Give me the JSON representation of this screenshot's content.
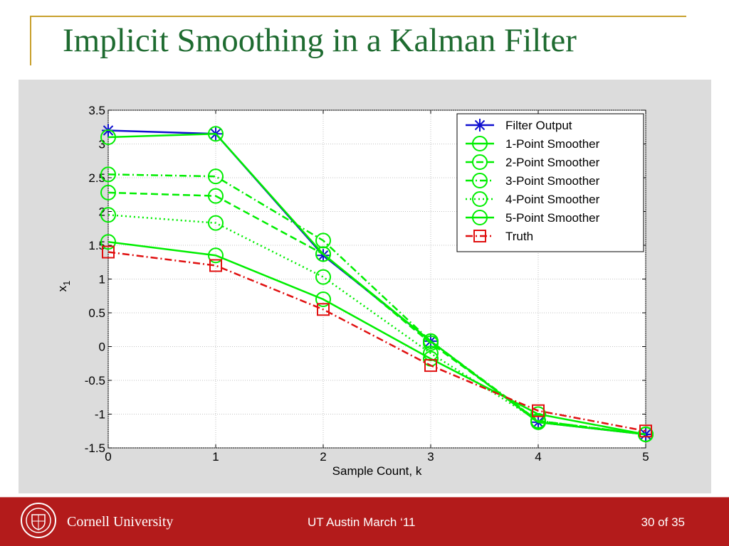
{
  "slide": {
    "title": "Implicit Smoothing in a Kalman Filter"
  },
  "footer": {
    "university": "Cornell University",
    "talk": "UT Austin March ‘11",
    "page": "30 of 35"
  },
  "colors": {
    "title": "#1e6b30",
    "accent_rule": "#c8a02c",
    "footer_bg": "#b31b1b",
    "filter_output": "#1010d0",
    "smoother": "#00ee00",
    "truth": "#e01010"
  },
  "chart_data": {
    "type": "line",
    "xlabel": "Sample Count, k",
    "ylabel": "x",
    "ylabel_subscript": "1",
    "xlim": [
      0,
      5
    ],
    "ylim": [
      -1.5,
      3.5
    ],
    "x_ticks": [
      "0",
      "1",
      "2",
      "3",
      "4",
      "5"
    ],
    "y_ticks": [
      "-1.5",
      "-1",
      "-0.5",
      "0",
      "0.5",
      "1",
      "1.5",
      "2",
      "2.5",
      "3",
      "3.5"
    ],
    "grid": true,
    "legend_position": "top-right",
    "x": [
      0,
      1,
      2,
      3,
      4,
      5
    ],
    "series": [
      {
        "name": "Filter Output",
        "values": [
          3.2,
          3.15,
          1.35,
          0.08,
          -1.12,
          -1.3
        ],
        "color": "#1010d0",
        "dash": "solid",
        "marker": "asterisk"
      },
      {
        "name": "1-Point Smoother",
        "values": [
          3.1,
          3.15,
          1.37,
          0.08,
          -1.12,
          -1.3
        ],
        "color": "#00ee00",
        "dash": "solid",
        "marker": "circle"
      },
      {
        "name": "2-Point Smoother",
        "values": [
          2.28,
          2.23,
          1.37,
          0.05,
          -1.1,
          -1.3
        ],
        "color": "#00ee00",
        "dash": "dashed",
        "marker": "circle"
      },
      {
        "name": "3-Point Smoother",
        "values": [
          2.55,
          2.52,
          1.57,
          0.08,
          -1.1,
          -1.3
        ],
        "color": "#00ee00",
        "dash": "dashdot",
        "marker": "circle"
      },
      {
        "name": "4-Point Smoother",
        "values": [
          1.95,
          1.83,
          1.03,
          -0.1,
          -1.1,
          -1.3
        ],
        "color": "#00ee00",
        "dash": "dotted",
        "marker": "circle"
      },
      {
        "name": "5-Point Smoother",
        "values": [
          1.55,
          1.35,
          0.7,
          -0.18,
          -1.0,
          -1.3
        ],
        "color": "#00ee00",
        "dash": "solid",
        "marker": "circle"
      },
      {
        "name": "Truth",
        "values": [
          1.4,
          1.2,
          0.55,
          -0.28,
          -0.95,
          -1.25
        ],
        "color": "#e01010",
        "dash": "dashdot",
        "marker": "square"
      }
    ]
  }
}
